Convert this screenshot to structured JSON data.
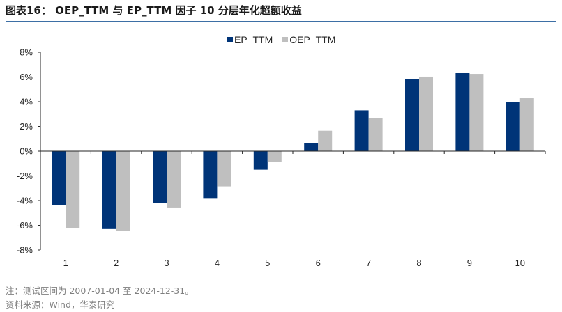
{
  "header": {
    "title": "图表16： OEP_TTM 与 EP_TTM 因子 10 分层年化超额收益"
  },
  "footer": {
    "note": "注：测试区间为 2007-01-04 至 2024-12-31。",
    "source": "资料来源：Wind，华泰研究"
  },
  "chart_data": {
    "type": "bar",
    "title": "OEP_TTM 与 EP_TTM 因子 10 分层年化超额收益",
    "xlabel": "",
    "ylabel": "",
    "categories": [
      "1",
      "2",
      "3",
      "4",
      "5",
      "6",
      "7",
      "8",
      "9",
      "10"
    ],
    "series": [
      {
        "name": "EP_TTM",
        "color": "#003478",
        "values": [
          -4.38,
          -6.3,
          -4.18,
          -3.85,
          -1.5,
          0.62,
          3.3,
          5.84,
          6.31,
          4.0
        ]
      },
      {
        "name": "OEP_TTM",
        "color": "#bfbfbf",
        "values": [
          -6.2,
          -6.44,
          -4.56,
          -2.85,
          -0.88,
          1.65,
          2.7,
          6.03,
          6.25,
          4.28
        ]
      }
    ],
    "ylim": [
      -8,
      8
    ],
    "yticks": [
      8,
      6,
      4,
      2,
      0,
      -2,
      -4,
      -6,
      -8
    ],
    "ytick_labels": [
      "8%",
      "6%",
      "4%",
      "2%",
      "0%",
      "-2%",
      "-4%",
      "-6%",
      "-8%"
    ],
    "grid": false,
    "legend": "top-center"
  }
}
